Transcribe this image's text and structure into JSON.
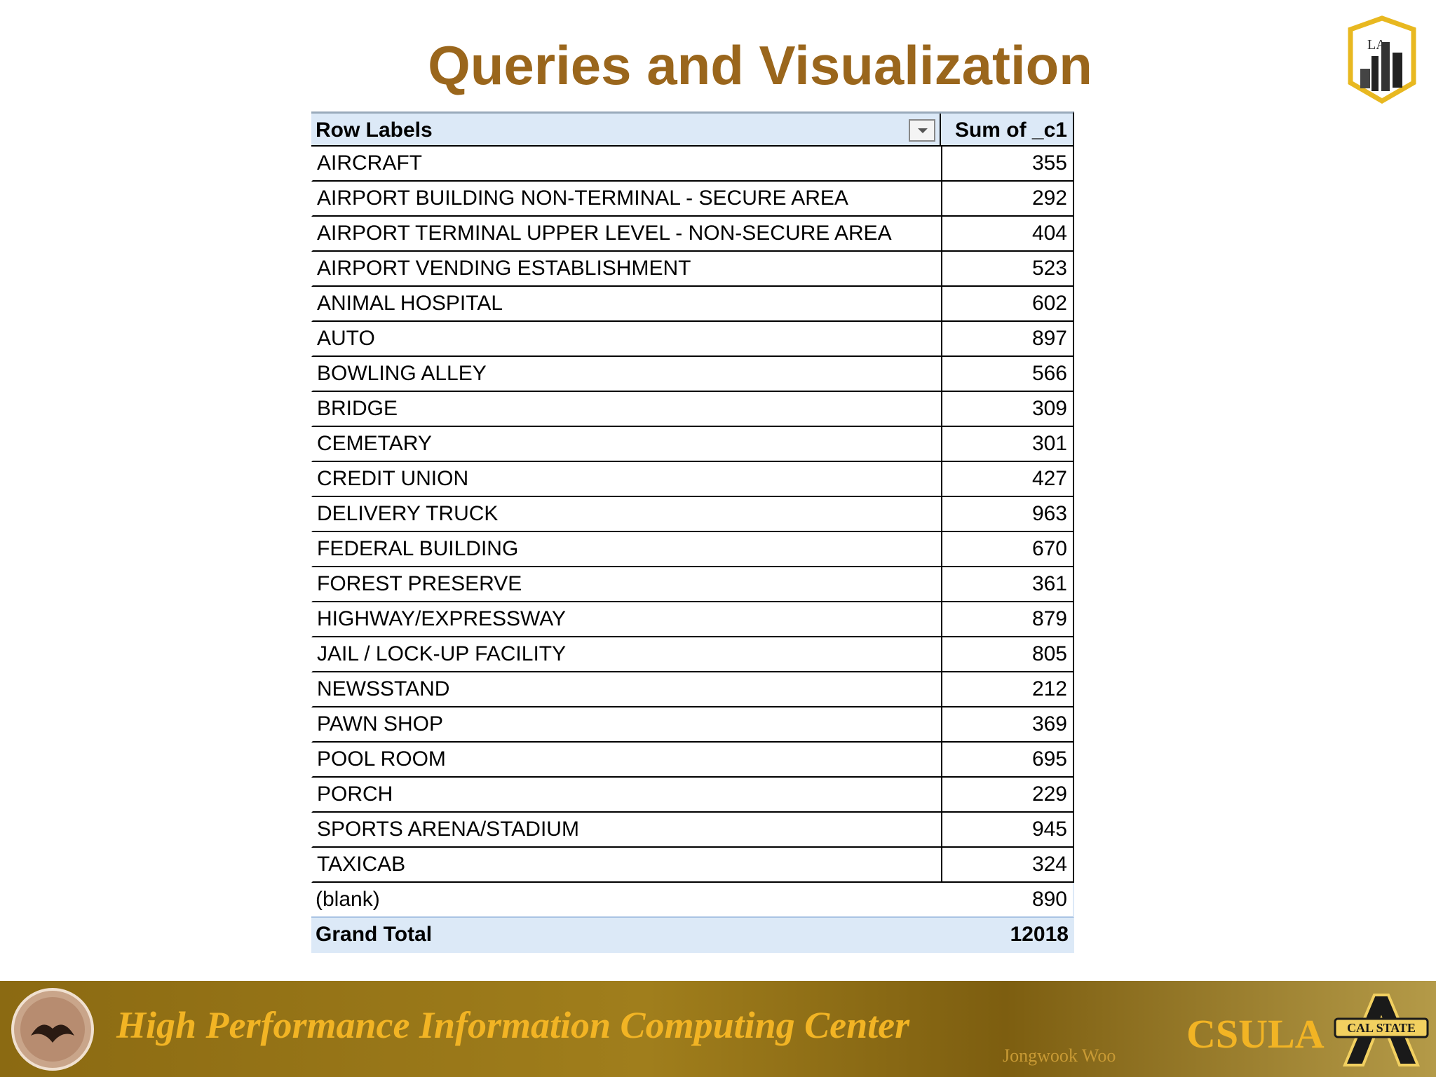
{
  "header": {
    "title": "Queries and Visualization",
    "logo_text": "LA"
  },
  "table": {
    "columns": [
      "Row Labels",
      "Sum of _c1"
    ],
    "rows": [
      [
        "AIRCRAFT",
        "355"
      ],
      [
        "AIRPORT BUILDING NON-TERMINAL - SECURE AREA",
        "292"
      ],
      [
        "AIRPORT TERMINAL UPPER LEVEL - NON-SECURE AREA",
        "404"
      ],
      [
        "AIRPORT VENDING ESTABLISHMENT",
        "523"
      ],
      [
        "ANIMAL HOSPITAL",
        "602"
      ],
      [
        "AUTO",
        "897"
      ],
      [
        "BOWLING ALLEY",
        "566"
      ],
      [
        "BRIDGE",
        "309"
      ],
      [
        "CEMETARY",
        "301"
      ],
      [
        "CREDIT UNION",
        "427"
      ],
      [
        "DELIVERY TRUCK",
        "963"
      ],
      [
        "FEDERAL BUILDING",
        "670"
      ],
      [
        "FOREST PRESERVE",
        "361"
      ],
      [
        "HIGHWAY/EXPRESSWAY",
        "879"
      ],
      [
        "JAIL / LOCK-UP FACILITY",
        "805"
      ],
      [
        "NEWSSTAND",
        "212"
      ],
      [
        "PAWN SHOP",
        "369"
      ],
      [
        "POOL ROOM",
        "695"
      ],
      [
        "PORCH",
        "229"
      ],
      [
        "SPORTS ARENA/STADIUM",
        "945"
      ],
      [
        "TAXICAB",
        "324"
      ],
      [
        "(blank)",
        "890"
      ]
    ],
    "total": [
      "Grand Total",
      "12018"
    ]
  },
  "footer": {
    "center": "High Performance Information Computing Center",
    "author": "Jongwook Woo",
    "brand": "CSULA",
    "logo_text": "CAL STATE"
  }
}
